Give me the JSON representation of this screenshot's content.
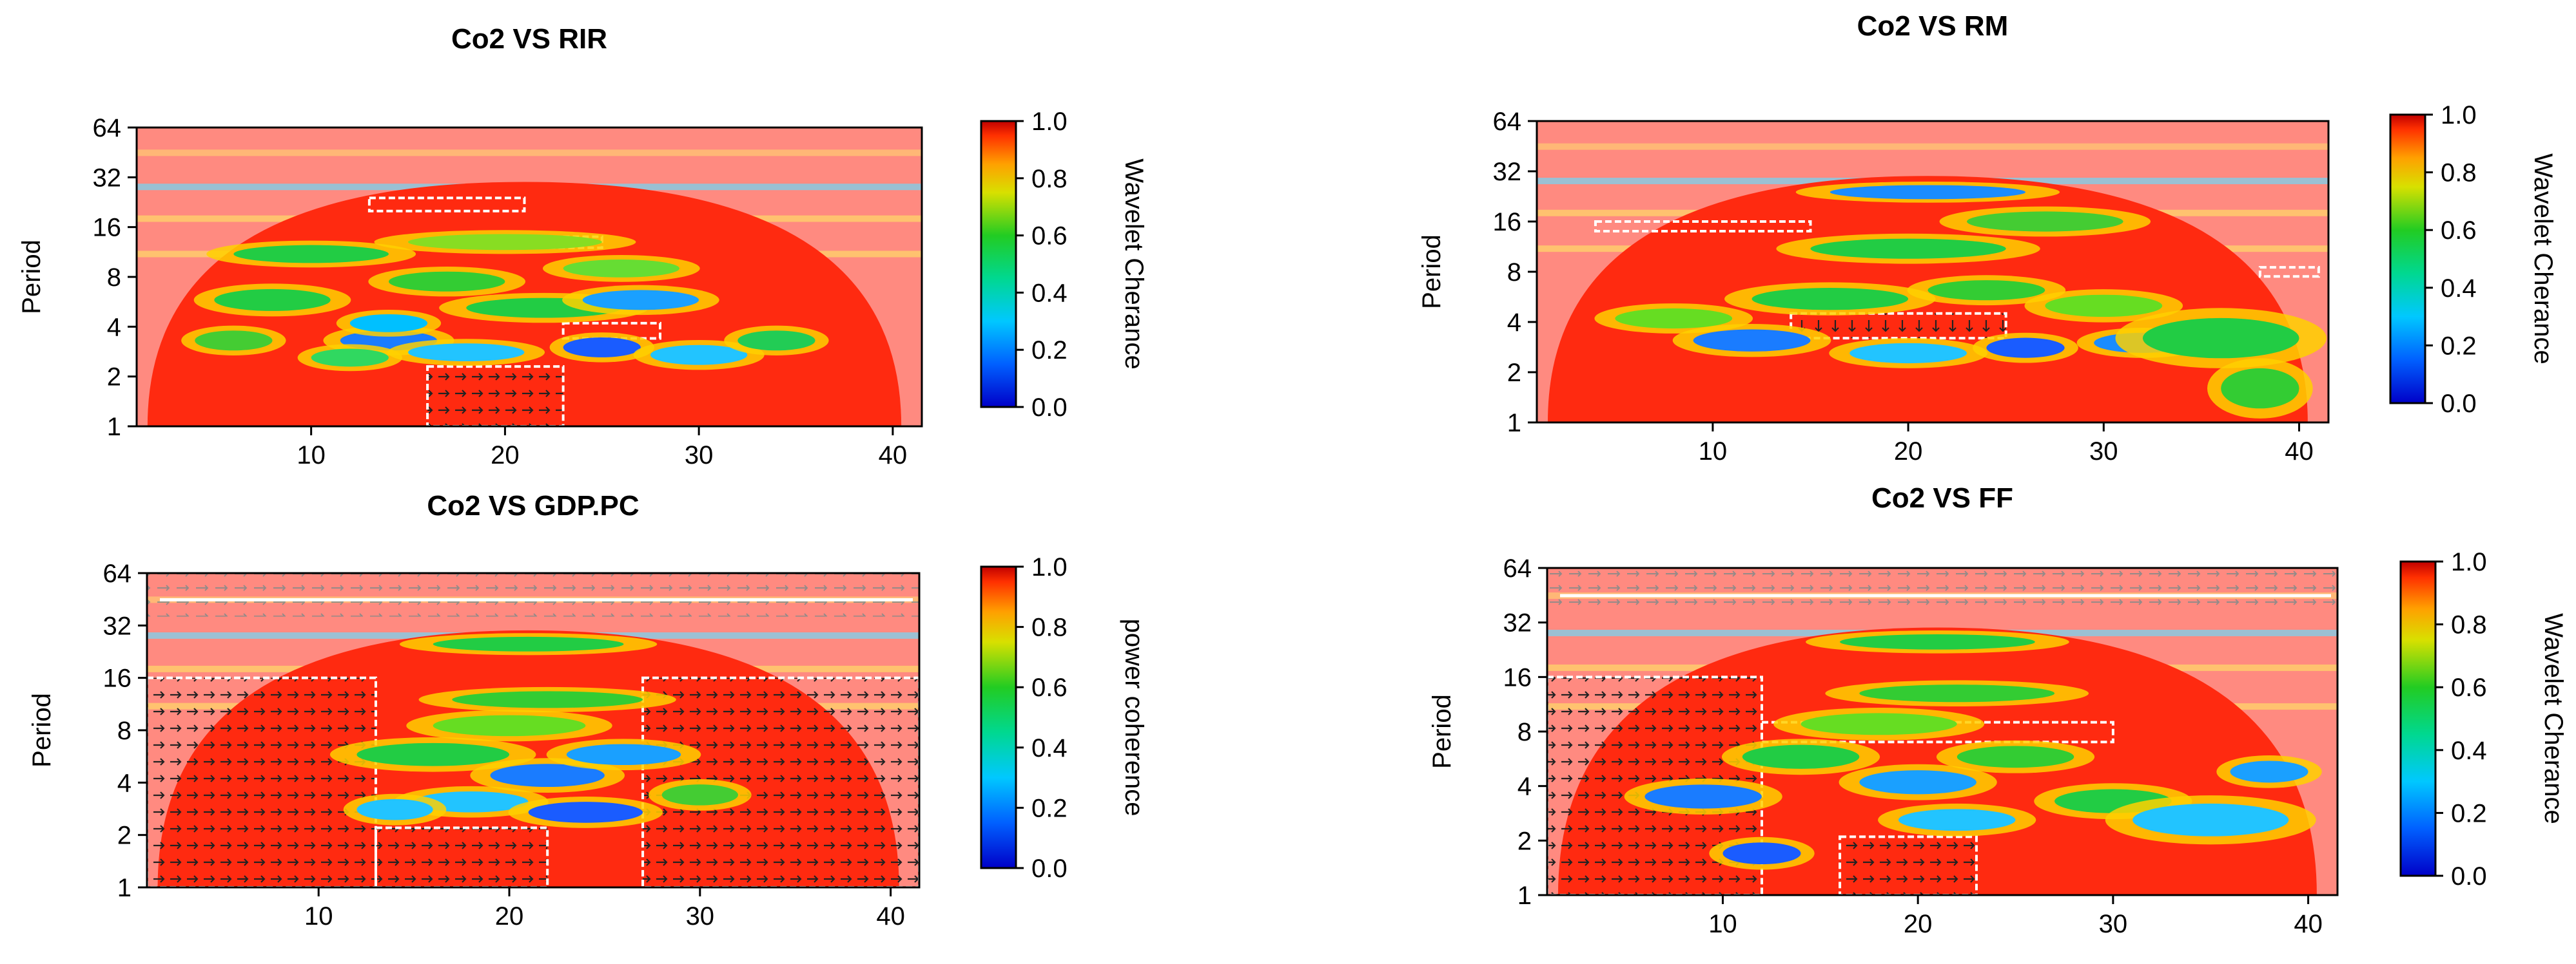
{
  "chart_data": [
    {
      "type": "heatmap",
      "subtype": "wavelet-coherence",
      "title": "Co2 VS RIR",
      "xlabel": "",
      "ylabel": "Period",
      "xlim": [
        1,
        41.5
      ],
      "xticks": [
        10,
        20,
        30,
        40
      ],
      "ylim": [
        1,
        64
      ],
      "yscale": "log2",
      "yticks": [
        1,
        2,
        4,
        8,
        16,
        32,
        64
      ],
      "colorbar": {
        "label": "Wavelet Cherance",
        "min": 0.0,
        "max": 1.0,
        "ticks": [
          "0.0",
          "0.2",
          "0.4",
          "0.6",
          "0.8",
          "1.0"
        ]
      },
      "significant_regions": [
        {
          "x": [
            16,
            23
          ],
          "period": [
            1,
            2.3
          ],
          "label": "high coherence, arrows right"
        },
        {
          "x": [
            13,
            21
          ],
          "period": [
            20,
            24
          ]
        },
        {
          "x": [
            20,
            25
          ],
          "period": [
            12,
            14
          ]
        },
        {
          "x": [
            23,
            28
          ],
          "period": [
            3.4,
            4.2
          ]
        }
      ]
    },
    {
      "type": "heatmap",
      "subtype": "wavelet-coherence",
      "title": "Co2 VS RM",
      "xlabel": "",
      "ylabel": "Period",
      "xlim": [
        1,
        41.5
      ],
      "xticks": [
        10,
        20,
        30,
        40
      ],
      "ylim": [
        1,
        64
      ],
      "yscale": "log2",
      "yticks": [
        1,
        2,
        4,
        8,
        16,
        32,
        64
      ],
      "colorbar": {
        "label": "Wavelet Cherance",
        "min": 0.0,
        "max": 1.0,
        "ticks": [
          "0.0",
          "0.2",
          "0.4",
          "0.6",
          "0.8",
          "1.0"
        ]
      },
      "significant_regions": [
        {
          "x": [
            4,
            15
          ],
          "period": [
            14,
            16
          ]
        },
        {
          "x": [
            14,
            25
          ],
          "period": [
            3.2,
            4.5
          ],
          "label": "arrows down"
        },
        {
          "x": [
            38,
            41
          ],
          "period": [
            7.5,
            8.5
          ]
        }
      ]
    },
    {
      "type": "heatmap",
      "subtype": "wavelet-coherence",
      "title": "Co2 VS GDP.PC",
      "xlabel": "",
      "ylabel": "Period",
      "xlim": [
        1,
        41.5
      ],
      "xticks": [
        10,
        20,
        30,
        40
      ],
      "ylim": [
        1,
        64
      ],
      "yscale": "log2",
      "yticks": [
        1,
        2,
        4,
        8,
        16,
        32,
        64
      ],
      "colorbar": {
        "label": "power coherence",
        "min": 0.0,
        "max": 1.0,
        "ticks": [
          "0.0",
          "0.2",
          "0.4",
          "0.6",
          "0.8",
          "1.0"
        ]
      },
      "significant_regions": [
        {
          "x": [
            1,
            13
          ],
          "period": [
            1,
            16
          ],
          "label": "arrows right"
        },
        {
          "x": [
            13,
            22
          ],
          "period": [
            1,
            2.2
          ]
        },
        {
          "x": [
            27,
            41.5
          ],
          "period": [
            1,
            16
          ]
        }
      ]
    },
    {
      "type": "heatmap",
      "subtype": "wavelet-coherence",
      "title": "Co2 VS FF",
      "xlabel": "",
      "ylabel": "Period",
      "xlim": [
        1,
        41.5
      ],
      "xticks": [
        10,
        20,
        30,
        40
      ],
      "ylim": [
        1,
        64
      ],
      "yscale": "log2",
      "yticks": [
        1,
        2,
        4,
        8,
        16,
        32,
        64
      ],
      "colorbar": {
        "label": "Wavelet Cherance",
        "min": 0.0,
        "max": 1.0,
        "ticks": [
          "0.0",
          "0.2",
          "0.4",
          "0.6",
          "0.8",
          "1.0"
        ]
      },
      "significant_regions": [
        {
          "x": [
            1,
            12
          ],
          "period": [
            1,
            16
          ],
          "label": "arrows right"
        },
        {
          "x": [
            16,
            23
          ],
          "period": [
            1,
            2.1
          ]
        },
        {
          "x": [
            12,
            30
          ],
          "period": [
            7,
            9
          ]
        }
      ]
    }
  ]
}
